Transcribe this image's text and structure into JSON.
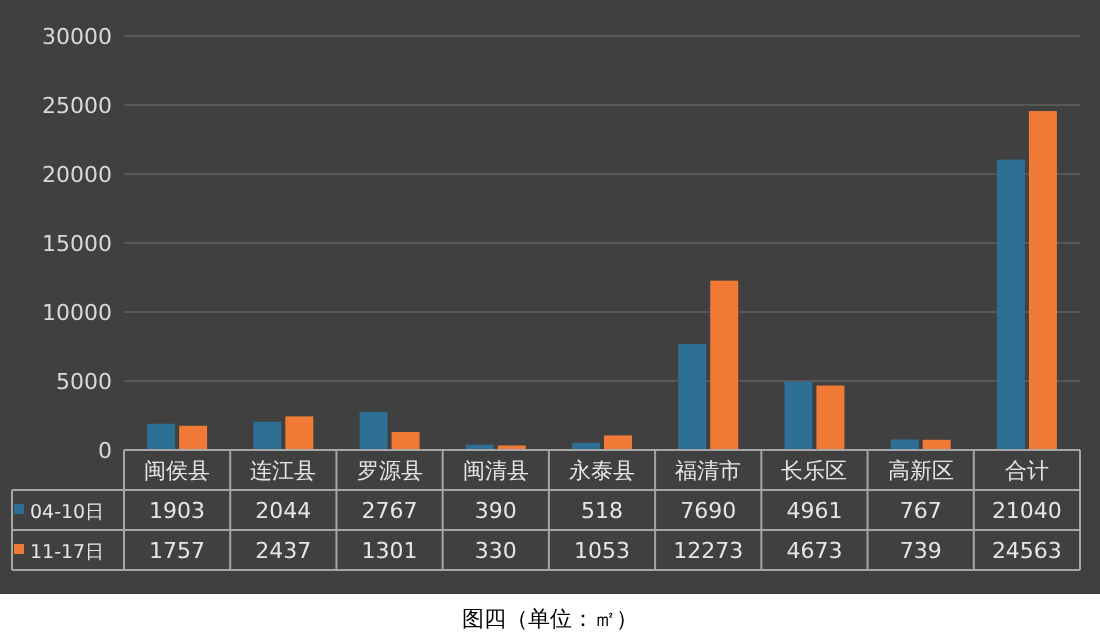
{
  "chart_data": {
    "type": "bar",
    "categories": [
      "闽侯县",
      "连江县",
      "罗源县",
      "闽清县",
      "永泰县",
      "福清市",
      "长乐区",
      "高新区",
      "合计"
    ],
    "series": [
      {
        "name": "04-10日",
        "color": "#2e6f95",
        "values": [
          1903,
          2044,
          2767,
          390,
          518,
          7690,
          4961,
          767,
          21040
        ]
      },
      {
        "name": "11-17日",
        "color": "#f07a36",
        "values": [
          1757,
          2437,
          1301,
          330,
          1053,
          12273,
          4673,
          739,
          24563
        ]
      }
    ],
    "ylim": [
      0,
      30000
    ],
    "yticks": [
      0,
      5000,
      10000,
      15000,
      20000,
      25000,
      30000
    ],
    "grid": "y",
    "legend": "bottom",
    "data_labels": true,
    "annotations": [
      "图四（单位：㎡）"
    ]
  }
}
